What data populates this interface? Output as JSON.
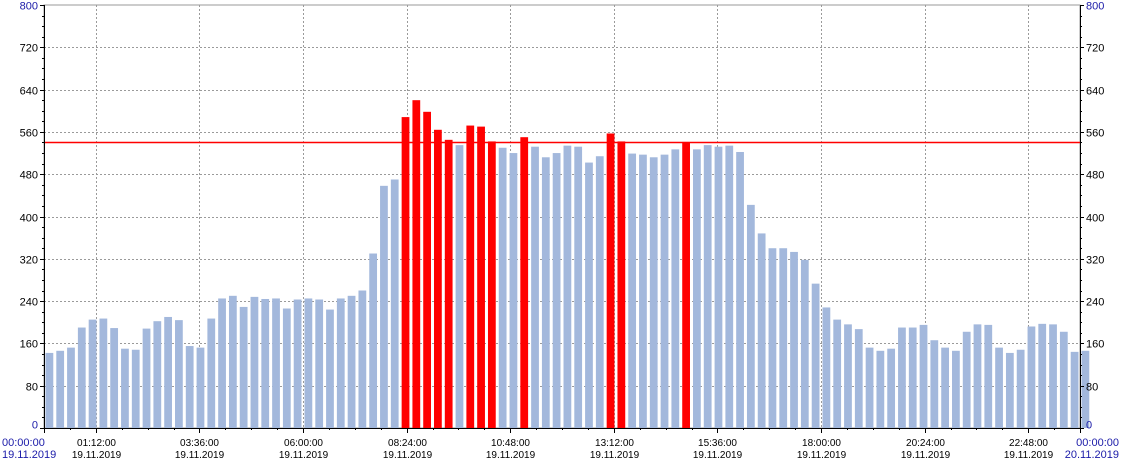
{
  "chart_data": {
    "type": "bar",
    "title": "",
    "xlabel": "",
    "ylabel": "",
    "ylim": [
      0,
      800
    ],
    "xlim": [
      "00:00:00 19.11.2019",
      "00:00:00 20.11.2019"
    ],
    "y_ticks": [
      0,
      80,
      160,
      240,
      320,
      400,
      480,
      560,
      640,
      720,
      800
    ],
    "y_tick_labels_blue": [
      "0",
      "800"
    ],
    "x_ticks": [
      {
        "time": "00:00:00",
        "date": "19.11.2019",
        "edge": true
      },
      {
        "time": "01:12:00",
        "date": "19.11.2019",
        "edge": false
      },
      {
        "time": "03:36:00",
        "date": "19.11.2019",
        "edge": false
      },
      {
        "time": "06:00:00",
        "date": "19.11.2019",
        "edge": false
      },
      {
        "time": "08:24:00",
        "date": "19.11.2019",
        "edge": false
      },
      {
        "time": "10:48:00",
        "date": "19.11.2019",
        "edge": false
      },
      {
        "time": "13:12:00",
        "date": "19.11.2019",
        "edge": false
      },
      {
        "time": "15:36:00",
        "date": "19.11.2019",
        "edge": false
      },
      {
        "time": "18:00:00",
        "date": "19.11.2019",
        "edge": false
      },
      {
        "time": "20:24:00",
        "date": "19.11.2019",
        "edge": false
      },
      {
        "time": "22:48:00",
        "date": "19.11.2019",
        "edge": false
      },
      {
        "time": "00:00:00",
        "date": "20.11.2019",
        "edge": true
      }
    ],
    "threshold": 540,
    "colors": {
      "normal_bar": "#a3b8dc",
      "over_bar": "#ff0000",
      "threshold_line": "#ff0000",
      "grid": "#9a9a9a",
      "axis": "#000000",
      "edge_label": "#1a1aa8"
    },
    "interval_minutes": 15,
    "values": [
      142,
      146,
      152,
      190,
      205,
      207,
      189,
      150,
      148,
      188,
      202,
      210,
      204,
      155,
      152,
      207,
      245,
      250,
      229,
      248,
      244,
      245,
      226,
      243,
      245,
      243,
      224,
      245,
      250,
      260,
      330,
      458,
      470,
      588,
      620,
      598,
      564,
      545,
      535,
      572,
      570,
      542,
      530,
      520,
      550,
      532,
      512,
      520,
      534,
      532,
      502,
      514,
      557,
      542,
      519,
      517,
      512,
      517,
      527,
      541,
      527,
      535,
      532,
      534,
      522,
      422,
      368,
      340,
      340,
      333,
      318,
      273,
      228,
      205,
      196,
      187,
      152,
      146,
      150,
      190,
      190,
      195,
      166,
      152,
      146,
      182,
      196,
      195,
      152,
      142,
      148,
      192,
      197,
      196,
      182,
      144,
      146
    ]
  }
}
